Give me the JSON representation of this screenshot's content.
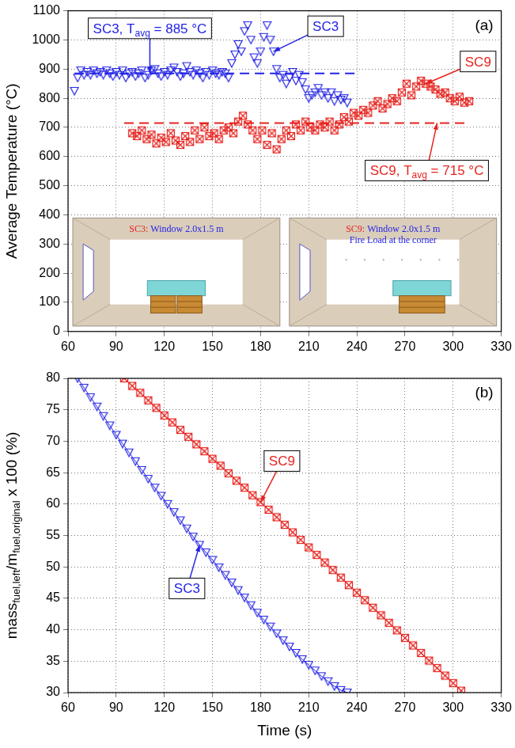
{
  "chart_data": [
    {
      "type": "scatter",
      "panel": "(a)",
      "y_title": [
        "Average Temperature (°C)"
      ],
      "xlim": [
        60,
        330
      ],
      "xticks": [
        60,
        90,
        120,
        150,
        180,
        210,
        240,
        270,
        300,
        330
      ],
      "ylim": [
        0,
        1100
      ],
      "yticks": [
        0,
        100,
        200,
        300,
        400,
        500,
        600,
        700,
        800,
        900,
        1000,
        1100
      ],
      "grid": true,
      "series": [
        {
          "name": "SC3",
          "color": "#2323e6",
          "marker": "triangle-down",
          "line_style": "none",
          "x": [
            64,
            66,
            68,
            70,
            72,
            74,
            76,
            78,
            80,
            82,
            84,
            86,
            88,
            90,
            92,
            94,
            96,
            98,
            100,
            102,
            104,
            106,
            108,
            110,
            112,
            114,
            116,
            118,
            120,
            122,
            124,
            126,
            128,
            130,
            132,
            134,
            136,
            138,
            140,
            142,
            144,
            146,
            148,
            150,
            152,
            154,
            156,
            158,
            160,
            162,
            164,
            166,
            168,
            170,
            172,
            174,
            176,
            178,
            180,
            182,
            184,
            186,
            188,
            190,
            192,
            194,
            196,
            198,
            200,
            202,
            204,
            206,
            208,
            210,
            212,
            214,
            216,
            218,
            220,
            222,
            224,
            226,
            228,
            230,
            232,
            234
          ],
          "values": [
            825,
            870,
            895,
            880,
            890,
            880,
            895,
            885,
            890,
            880,
            895,
            885,
            875,
            890,
            880,
            895,
            870,
            885,
            890,
            875,
            885,
            895,
            870,
            880,
            895,
            900,
            885,
            875,
            890,
            880,
            895,
            905,
            890,
            875,
            885,
            910,
            890,
            880,
            895,
            885,
            870,
            890,
            880,
            895,
            885,
            880,
            890,
            885,
            870,
            920,
            950,
            985,
            960,
            1030,
            1050,
            1000,
            940,
            920,
            960,
            1010,
            1050,
            1000,
            960,
            900,
            870,
            880,
            850,
            870,
            890,
            860,
            880,
            855,
            830,
            800,
            810,
            820,
            835,
            810,
            820,
            800,
            820,
            790,
            810,
            795,
            800,
            785
          ]
        },
        {
          "name": "SC9",
          "color": "#e6231e",
          "marker": "square-x",
          "line_style": "none",
          "x": [
            100,
            103,
            106,
            109,
            112,
            115,
            118,
            121,
            124,
            127,
            130,
            133,
            136,
            139,
            142,
            145,
            148,
            151,
            154,
            157,
            160,
            163,
            166,
            169,
            172,
            175,
            178,
            181,
            184,
            187,
            190,
            193,
            196,
            199,
            202,
            205,
            208,
            211,
            214,
            217,
            220,
            223,
            226,
            229,
            232,
            235,
            238,
            241,
            244,
            247,
            250,
            253,
            256,
            259,
            262,
            265,
            268,
            271,
            274,
            277,
            280,
            283,
            286,
            289,
            292,
            295,
            298,
            301,
            304,
            307,
            310
          ],
          "values": [
            680,
            670,
            690,
            660,
            675,
            645,
            665,
            650,
            680,
            655,
            640,
            670,
            650,
            690,
            660,
            700,
            670,
            680,
            660,
            690,
            700,
            680,
            720,
            740,
            710,
            690,
            660,
            690,
            640,
            680,
            625,
            660,
            690,
            670,
            710,
            690,
            720,
            700,
            690,
            710,
            700,
            720,
            690,
            710,
            735,
            720,
            750,
            740,
            760,
            750,
            775,
            790,
            765,
            780,
            800,
            790,
            820,
            850,
            810,
            840,
            860,
            850,
            840,
            830,
            815,
            820,
            800,
            790,
            805,
            785,
            790
          ]
        }
      ],
      "hlines": [
        {
          "value": 885,
          "x": [
            64,
            240
          ],
          "color": "#2323e6",
          "line_style": "dashed"
        },
        {
          "value": 715,
          "x": [
            95,
            310
          ],
          "color": "#e6231e",
          "line_style": "dashed"
        }
      ],
      "annotations": [
        {
          "text": [
            "SC3, T",
            "avg",
            " = 885 °C"
          ],
          "x": 111,
          "y": 885,
          "color": "#2323e6"
        },
        {
          "text": [
            "SC3"
          ],
          "x": 188,
          "y": 960,
          "color": "#2323e6"
        },
        {
          "text": [
            "SC9"
          ],
          "x": 283,
          "y": 850,
          "color": "#e6231e"
        },
        {
          "text": [
            "SC9, T",
            "avg",
            " = 715 °C"
          ],
          "x": 290,
          "y": 715,
          "color": "#e6231e"
        }
      ],
      "insets": [
        {
          "label": "SC3:",
          "text": [
            "Window 2.0x1.5 m"
          ]
        },
        {
          "label": "SC9:",
          "text": [
            "Window 2.0x1.5 m",
            "Fire Load at the corner"
          ]
        }
      ]
    },
    {
      "type": "scatter",
      "panel": "(b)",
      "y_title": [
        "mass",
        "fuel,left",
        "/m",
        "fuel,original",
        " x 100 (%)"
      ],
      "x_title": "Time (s)",
      "xlim": [
        60,
        330
      ],
      "xticks": [
        60,
        90,
        120,
        150,
        180,
        210,
        240,
        270,
        300,
        330
      ],
      "ylim": [
        30,
        80
      ],
      "yticks": [
        30,
        35,
        40,
        45,
        50,
        55,
        60,
        65,
        70,
        75,
        80
      ],
      "grid": true,
      "series": [
        {
          "name": "SC3",
          "color": "#2323e6",
          "marker": "triangle-down",
          "line_style": "solid",
          "x": [
            66,
            70,
            74,
            78,
            82,
            86,
            90,
            94,
            98,
            102,
            106,
            110,
            114,
            118,
            122,
            126,
            130,
            134,
            138,
            142,
            146,
            150,
            154,
            158,
            162,
            166,
            170,
            174,
            178,
            182,
            186,
            190,
            194,
            198,
            202,
            206,
            210,
            214,
            218,
            222,
            226,
            230,
            234
          ],
          "values": [
            80,
            78.5,
            77,
            75.5,
            74,
            72.5,
            71,
            69.6,
            68.2,
            66.8,
            65.4,
            64,
            62.6,
            61.3,
            60,
            58.7,
            57.4,
            56.1,
            54.8,
            53.5,
            52.3,
            51.1,
            49.9,
            48.7,
            47.5,
            46.3,
            45.1,
            43.9,
            42.7,
            41.6,
            40.5,
            39.4,
            38.3,
            37.3,
            36.3,
            35.3,
            34.4,
            33.5,
            32.6,
            31.8,
            31,
            30.4,
            30
          ]
        },
        {
          "name": "SC9",
          "color": "#e6231e",
          "marker": "square-x",
          "line_style": "solid",
          "x": [
            95,
            100,
            105,
            110,
            115,
            120,
            125,
            130,
            135,
            140,
            145,
            150,
            155,
            160,
            165,
            170,
            175,
            180,
            185,
            190,
            195,
            200,
            205,
            210,
            215,
            220,
            225,
            230,
            235,
            240,
            245,
            250,
            255,
            260,
            265,
            270,
            275,
            280,
            285,
            290,
            295,
            300,
            305
          ],
          "values": [
            80,
            78.8,
            77.7,
            76.5,
            75.3,
            74.1,
            73,
            71.8,
            70.7,
            69.5,
            68.4,
            67.2,
            66.1,
            64.9,
            63.7,
            62.6,
            61.4,
            60.3,
            59.1,
            57.9,
            56.7,
            55.5,
            54.3,
            53.1,
            51.9,
            50.7,
            49.5,
            48.3,
            47.1,
            45.9,
            44.7,
            43.5,
            42.3,
            41.1,
            39.9,
            38.7,
            37.5,
            36.3,
            35.1,
            33.9,
            32.7,
            31.5,
            30.3
          ]
        }
      ],
      "annotations": [
        {
          "text": [
            "SC9"
          ],
          "x": 180,
          "y": 60.3,
          "color": "#e6231e"
        },
        {
          "text": [
            "SC3"
          ],
          "x": 142,
          "y": 53.5,
          "color": "#2323e6"
        }
      ]
    }
  ]
}
